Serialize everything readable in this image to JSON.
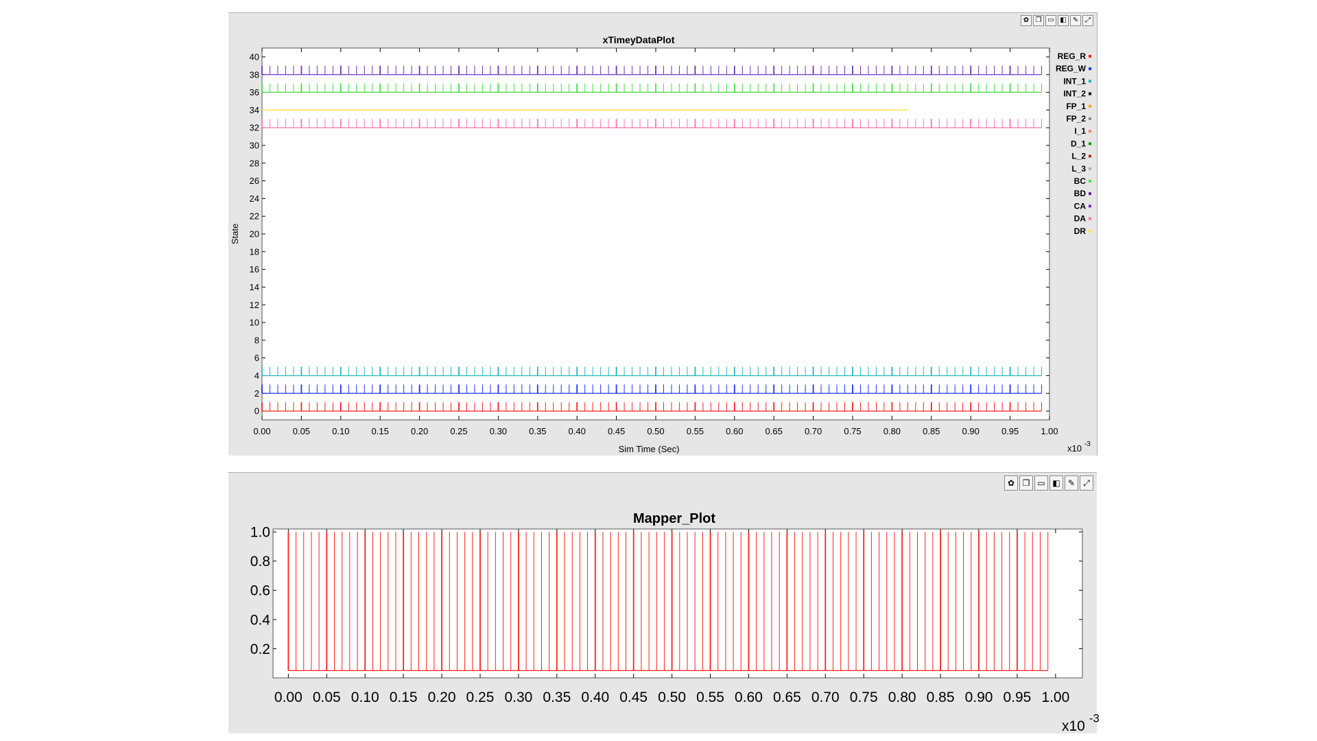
{
  "toolbar_icons": [
    "palette-icon",
    "copy-icon",
    "save-icon",
    "print-icon",
    "settings-icon",
    "restore-icon"
  ],
  "toolbar_glyphs": [
    "✿",
    "❐",
    "▭",
    "◧",
    "✎",
    "⤢"
  ],
  "chart_data": [
    {
      "type": "line",
      "title": "xTimeyDataPlot",
      "xlabel": "Sim Time (Sec)",
      "ylabel": "State",
      "x_multiplier_label": "x10",
      "x_multiplier_exp": "-3",
      "xlim": [
        0.0,
        1.0
      ],
      "ylim": [
        -1,
        41
      ],
      "x_ticks": [
        "0.00",
        "0.05",
        "0.10",
        "0.15",
        "0.20",
        "0.25",
        "0.30",
        "0.35",
        "0.40",
        "0.45",
        "0.50",
        "0.55",
        "0.60",
        "0.65",
        "0.70",
        "0.75",
        "0.80",
        "0.85",
        "0.90",
        "0.95",
        "1.00"
      ],
      "y_ticks": [
        "0",
        "2",
        "4",
        "6",
        "8",
        "10",
        "12",
        "14",
        "16",
        "18",
        "20",
        "22",
        "24",
        "26",
        "28",
        "30",
        "32",
        "34",
        "36",
        "38",
        "40"
      ],
      "legend_position": "right",
      "legend": [
        {
          "name": "REG_R",
          "color": "#ff2020"
        },
        {
          "name": "REG_W",
          "color": "#2030ff"
        },
        {
          "name": "INT_1",
          "color": "#20b8c0"
        },
        {
          "name": "INT_2",
          "color": "#000000"
        },
        {
          "name": "FP_1",
          "color": "#ffa000"
        },
        {
          "name": "FP_2",
          "color": "#8a8a8a"
        },
        {
          "name": "I_1",
          "color": "#ff8060"
        },
        {
          "name": "D_1",
          "color": "#00a000"
        },
        {
          "name": "L_2",
          "color": "#b03030"
        },
        {
          "name": "L_3",
          "color": "#b0b0b0"
        },
        {
          "name": "BC",
          "color": "#40e040"
        },
        {
          "name": "BD",
          "color": "#6020a0"
        },
        {
          "name": "CA",
          "color": "#7030c0"
        },
        {
          "name": "DA",
          "color": "#ff70b0"
        },
        {
          "name": "DR",
          "color": "#ffe040"
        }
      ],
      "series": [
        {
          "name": "REG_R",
          "color": "#ff2020",
          "baseline": 0,
          "pulse_height": 1,
          "x_start": 0.0,
          "x_end": 0.99,
          "pulse_period": 0.01
        },
        {
          "name": "REG_W",
          "color": "#2030ff",
          "baseline": 2,
          "pulse_height": 1,
          "x_start": 0.0,
          "x_end": 0.99,
          "pulse_period": 0.01
        },
        {
          "name": "INT_1",
          "color": "#20b8c0",
          "baseline": 4,
          "pulse_height": 1,
          "x_start": 0.0,
          "x_end": 0.99,
          "pulse_period": 0.01
        },
        {
          "name": "DA",
          "color": "#ff70b0",
          "baseline": 32,
          "pulse_height": 1,
          "x_start": 0.0,
          "x_end": 0.99,
          "pulse_period": 0.01
        },
        {
          "name": "DR",
          "color": "#ffe040",
          "baseline": 34,
          "pulse_height": 0,
          "x_start": 0.0,
          "x_end": 0.82,
          "pulse_period": 0
        },
        {
          "name": "BC",
          "color": "#40e040",
          "baseline": 36,
          "pulse_height": 1,
          "x_start": 0.0,
          "x_end": 0.99,
          "pulse_period": 0.01
        },
        {
          "name": "CA",
          "color": "#7030c0",
          "baseline": 38,
          "pulse_height": 1,
          "x_start": 0.0,
          "x_end": 0.99,
          "pulse_period": 0.01
        }
      ]
    },
    {
      "type": "line",
      "title": "Mapper_Plot",
      "xlabel": "",
      "ylabel": "",
      "x_multiplier_label": "x10",
      "x_multiplier_exp": "-3",
      "xlim": [
        -0.02,
        1.035
      ],
      "ylim": [
        0.0,
        1.02
      ],
      "x_ticks": [
        "0.00",
        "0.05",
        "0.10",
        "0.15",
        "0.20",
        "0.25",
        "0.30",
        "0.35",
        "0.40",
        "0.45",
        "0.50",
        "0.55",
        "0.60",
        "0.65",
        "0.70",
        "0.75",
        "0.80",
        "0.85",
        "0.90",
        "0.95",
        "1.00"
      ],
      "y_ticks": [
        "0.2",
        "0.4",
        "0.6",
        "0.8",
        "1.0"
      ],
      "series": [
        {
          "name": "",
          "color": "#ff2020",
          "baseline": 0.05,
          "pulse_height": 1.0,
          "x_start": 0.0,
          "x_end": 0.99,
          "pulse_period": 0.01
        }
      ]
    }
  ]
}
